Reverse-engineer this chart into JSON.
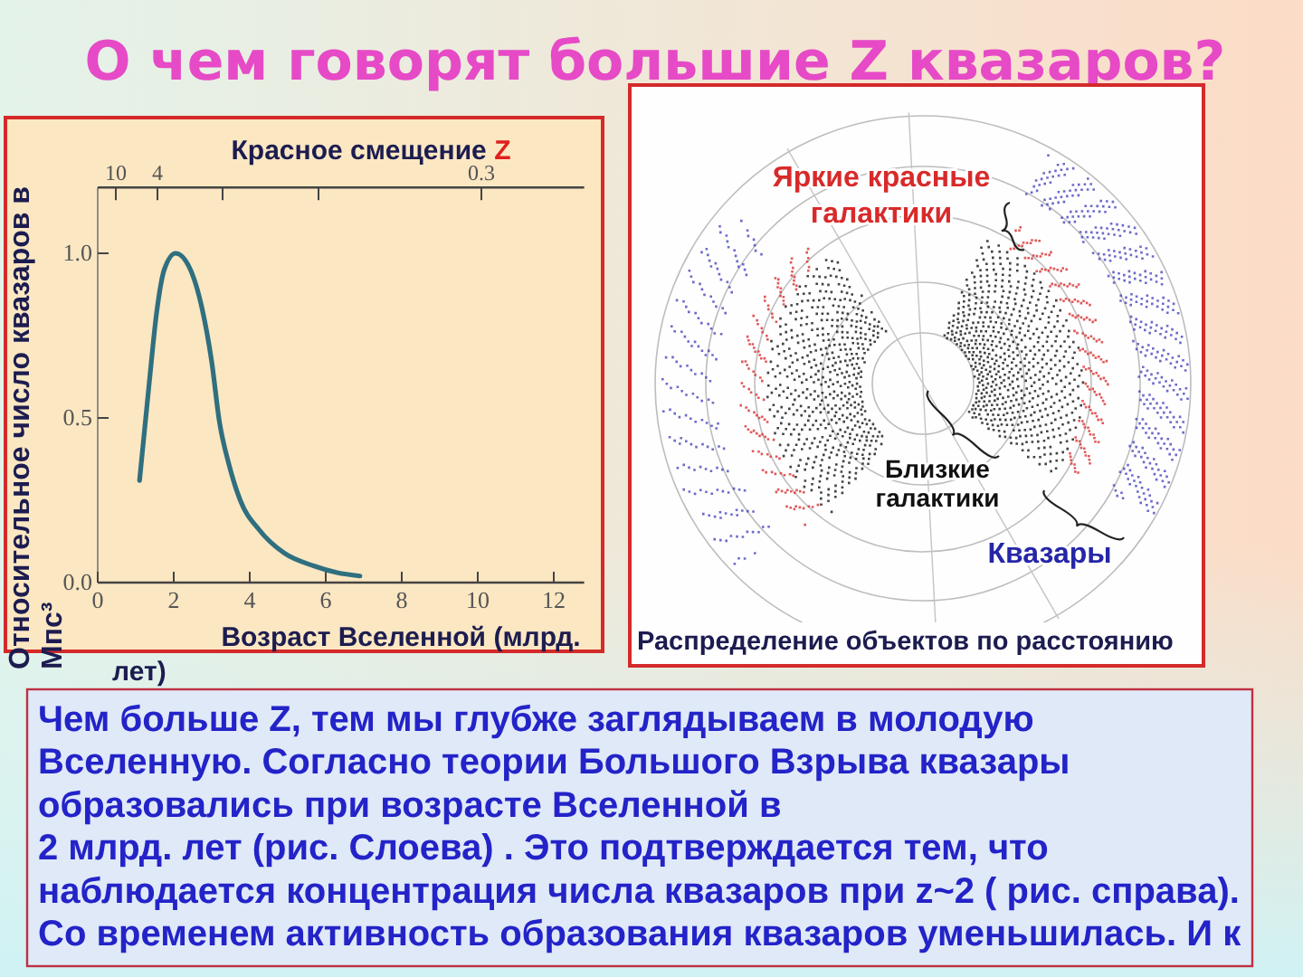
{
  "chart_data": {
    "type": "line",
    "title": "О чем говорят большие Z квазаров?",
    "xlabel": "Возраст Вселенной (млрд. лет)",
    "ylabel": "Относительное число квазаров в Мпс³",
    "x2label": "Красное смещение Z",
    "x": [
      1.1,
      1.35,
      1.55,
      1.75,
      2.05,
      2.4,
      2.75,
      3.0,
      3.2,
      3.45,
      3.75,
      4.25,
      4.9,
      5.7,
      6.3,
      6.9
    ],
    "series": [
      {
        "color": "#2f6f7f",
        "values": [
          0.31,
          0.6,
          0.82,
          0.95,
          1.0,
          0.96,
          0.83,
          0.67,
          0.49,
          0.36,
          0.25,
          0.16,
          0.09,
          0.05,
          0.03,
          0.02
        ]
      }
    ],
    "xlim": [
      0,
      12.8
    ],
    "xticks": [
      0,
      2,
      4,
      6,
      8,
      10,
      12
    ],
    "ylim": [
      0,
      1.2
    ],
    "yticks": [
      {
        "value": 0,
        "label": "0.0"
      },
      {
        "value": 0.5,
        "label": "0.5"
      },
      {
        "value": 1,
        "label": "1.0"
      }
    ],
    "line_style": "solid",
    "annotations": [
      "10",
      "4",
      "0.3",
      "Яркие красные галактики",
      "Близкие галактики",
      "Квазары",
      "Распределение объектов по расстоянию",
      "Чем больше Z, тем мы глубже заглядываем в молодую\nВселенную. Согласно теории Большого Взрыва квазары\nобразовались при возрасте Вселенной в\n2 млрд. лет (рис. Слоева) . Это подтверждается тем, что\nнаблюдается концентрация числа квазаров при z~2 ( рис. справа).\nСо временем активность образования квазаров уменьшилась. И к"
    ]
  }
}
